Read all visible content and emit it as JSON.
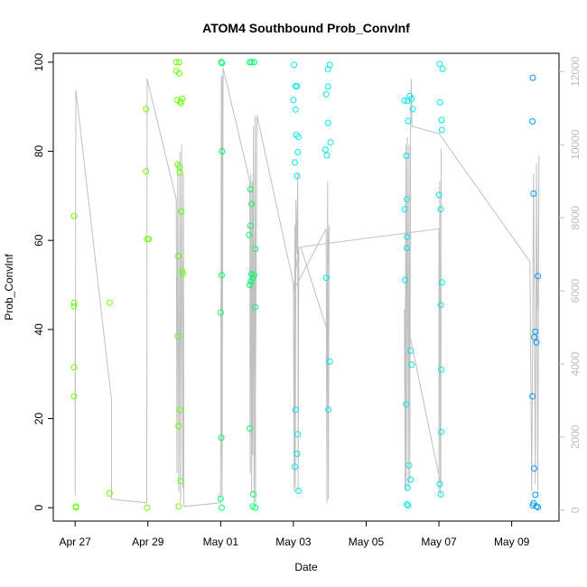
{
  "chart_data": {
    "type": "scatter",
    "title": "ATOM4 Southbound Prob_ConvInf",
    "xlabel": "Date",
    "ylabel": "Prob_ConvInf",
    "x_ticks": [
      "Apr 27",
      "Apr 29",
      "May 01",
      "May 03",
      "May 05",
      "May 07",
      "May 09"
    ],
    "x_tick_days": [
      0,
      2,
      4,
      6,
      8,
      10,
      12
    ],
    "xlim_days": [
      -0.6,
      13.3
    ],
    "ylim": [
      -3,
      102
    ],
    "y_ticks": [
      0,
      20,
      40,
      60,
      80,
      100
    ],
    "y2lim": [
      -300,
      12500
    ],
    "y2_ticks": [
      0,
      2000,
      4000,
      6000,
      8000,
      10000,
      12000
    ],
    "grid": false,
    "point_colors": {
      "early": "#66ff00",
      "mid": "#00ff66",
      "late": "#00e6e6",
      "end": "#0099ff"
    },
    "line_color": "#c0c0c0",
    "points": [
      [
        -0.03,
        65.5
      ],
      [
        -0.03,
        46
      ],
      [
        -0.03,
        45.2
      ],
      [
        -0.03,
        31.5
      ],
      [
        -0.03,
        25
      ],
      [
        0.02,
        0.3
      ],
      [
        0.02,
        0
      ],
      [
        0.95,
        46
      ],
      [
        0.95,
        3.2
      ],
      [
        1.95,
        89.5
      ],
      [
        1.95,
        75.5
      ],
      [
        1.98,
        60.3
      ],
      [
        2.02,
        60.3
      ],
      [
        1.98,
        0
      ],
      [
        2.78,
        100
      ],
      [
        2.86,
        100
      ],
      [
        2.78,
        98
      ],
      [
        2.86,
        97.5
      ],
      [
        2.8,
        91.5
      ],
      [
        2.9,
        91.2
      ],
      [
        2.95,
        91.8
      ],
      [
        2.9,
        90.8
      ],
      [
        2.82,
        77
      ],
      [
        2.87,
        76.5
      ],
      [
        2.88,
        75.2
      ],
      [
        2.92,
        66.5
      ],
      [
        2.84,
        56.5
      ],
      [
        2.94,
        53
      ],
      [
        2.96,
        52.5
      ],
      [
        2.82,
        38.5
      ],
      [
        2.88,
        22
      ],
      [
        2.84,
        18.3
      ],
      [
        2.9,
        6
      ],
      [
        2.85,
        0.3
      ],
      [
        4.02,
        100
      ],
      [
        4.04,
        99.8
      ],
      [
        4.04,
        80
      ],
      [
        4.03,
        52.2
      ],
      [
        4.0,
        43.8
      ],
      [
        4.02,
        15.7
      ],
      [
        4.0,
        2
      ],
      [
        4.03,
        0
      ],
      [
        4.8,
        100
      ],
      [
        4.85,
        100
      ],
      [
        4.92,
        100
      ],
      [
        4.82,
        71.5
      ],
      [
        4.85,
        68.2
      ],
      [
        4.82,
        63.3
      ],
      [
        4.78,
        61.2
      ],
      [
        4.95,
        58.1
      ],
      [
        4.85,
        52.5
      ],
      [
        4.92,
        52.2
      ],
      [
        4.88,
        51.5
      ],
      [
        4.83,
        50.8
      ],
      [
        4.8,
        50
      ],
      [
        4.95,
        45
      ],
      [
        4.8,
        17.8
      ],
      [
        4.9,
        3
      ],
      [
        4.88,
        0.3
      ],
      [
        4.95,
        0
      ],
      [
        6.02,
        99.4
      ],
      [
        6.06,
        94.6
      ],
      [
        6.1,
        94.6
      ],
      [
        6.0,
        91.5
      ],
      [
        6.06,
        89.4
      ],
      [
        6.08,
        83.7
      ],
      [
        6.14,
        83.2
      ],
      [
        6.12,
        79.8
      ],
      [
        6.04,
        77.5
      ],
      [
        6.1,
        74.5
      ],
      [
        6.06,
        22
      ],
      [
        6.12,
        16.5
      ],
      [
        6.1,
        12.1
      ],
      [
        6.04,
        9.2
      ],
      [
        6.14,
        3.8
      ],
      [
        7.0,
        99.4
      ],
      [
        6.95,
        98.4
      ],
      [
        6.95,
        94.5
      ],
      [
        6.9,
        92.8
      ],
      [
        6.95,
        86.4
      ],
      [
        7.02,
        82
      ],
      [
        6.88,
        80.4
      ],
      [
        6.92,
        79.1
      ],
      [
        6.9,
        51.6
      ],
      [
        7.0,
        32.8
      ],
      [
        6.96,
        22
      ],
      [
        10.02,
        99.6
      ],
      [
        10.1,
        98.5
      ],
      [
        10.03,
        91
      ],
      [
        10.07,
        87
      ],
      [
        10.08,
        84.8
      ],
      [
        10.05,
        67
      ],
      [
        10.0,
        70.2
      ],
      [
        10.08,
        50.6
      ],
      [
        10.05,
        45.5
      ],
      [
        10.06,
        31
      ],
      [
        10.06,
        17
      ],
      [
        10.02,
        5.3
      ],
      [
        10.05,
        3
      ],
      [
        9.2,
        92.4
      ],
      [
        9.25,
        91.8
      ],
      [
        9.05,
        91.4
      ],
      [
        9.13,
        91.3
      ],
      [
        9.28,
        89.5
      ],
      [
        9.15,
        86.8
      ],
      [
        9.1,
        79
      ],
      [
        9.12,
        69.2
      ],
      [
        9.06,
        67
      ],
      [
        9.12,
        60.8
      ],
      [
        9.12,
        58.3
      ],
      [
        9.07,
        51.1
      ],
      [
        9.22,
        35.2
      ],
      [
        9.25,
        32.1
      ],
      [
        9.1,
        23.2
      ],
      [
        9.18,
        9.5
      ],
      [
        9.22,
        6.3
      ],
      [
        9.14,
        4.5
      ],
      [
        9.12,
        0.8
      ],
      [
        9.15,
        0.5
      ],
      [
        12.58,
        96.5
      ],
      [
        12.57,
        86.7
      ],
      [
        12.6,
        70.5
      ],
      [
        12.72,
        52
      ],
      [
        12.65,
        39.5
      ],
      [
        12.62,
        38.3
      ],
      [
        12.68,
        37.1
      ],
      [
        12.57,
        25
      ],
      [
        12.62,
        8.8
      ],
      [
        12.65,
        2.9
      ],
      [
        12.6,
        1
      ],
      [
        12.58,
        0.5
      ],
      [
        12.68,
        0.3
      ],
      [
        12.72,
        0.1
      ]
    ],
    "line_path": [
      [
        0.0,
        5200
      ],
      [
        0.0,
        400
      ],
      [
        0.02,
        11500
      ],
      [
        1.0,
        3000
      ],
      [
        1.0,
        300
      ],
      [
        1.97,
        200
      ],
      [
        1.98,
        11800
      ],
      [
        2.78,
        8500
      ],
      [
        2.8,
        1000
      ],
      [
        2.82,
        9500
      ],
      [
        2.85,
        500
      ],
      [
        2.88,
        9800
      ],
      [
        2.9,
        200
      ],
      [
        2.93,
        10000
      ],
      [
        2.96,
        600
      ],
      [
        2.98,
        9200
      ],
      [
        2.99,
        200
      ],
      [
        3.0,
        100
      ],
      [
        4.0,
        200
      ],
      [
        4.02,
        11800
      ],
      [
        4.04,
        11900
      ],
      [
        4.03,
        2000
      ],
      [
        4.04,
        400
      ],
      [
        4.07,
        12100
      ],
      [
        4.8,
        9000
      ],
      [
        4.81,
        1000
      ],
      [
        4.83,
        9200
      ],
      [
        4.85,
        500
      ],
      [
        4.87,
        9000
      ],
      [
        4.88,
        1500
      ],
      [
        4.9,
        10500
      ],
      [
        4.92,
        200
      ],
      [
        4.95,
        10800
      ],
      [
        4.96,
        100
      ],
      [
        4.95,
        1800
      ],
      [
        5.0,
        10800
      ],
      [
        6.0,
        6200
      ],
      [
        6.02,
        500
      ],
      [
        6.04,
        7800
      ],
      [
        6.05,
        600
      ],
      [
        6.07,
        8500
      ],
      [
        6.1,
        7000
      ],
      [
        6.12,
        9200
      ],
      [
        6.13,
        500
      ],
      [
        6.15,
        7200
      ],
      [
        6.0,
        6000
      ],
      [
        6.9,
        7700
      ],
      [
        6.92,
        200
      ],
      [
        6.94,
        9000
      ],
      [
        6.96,
        300
      ],
      [
        6.98,
        7800
      ],
      [
        6.9,
        5000
      ],
      [
        6.2,
        7200
      ],
      [
        10.0,
        7700
      ],
      [
        10.0,
        500
      ],
      [
        10.02,
        9000
      ],
      [
        10.04,
        400
      ],
      [
        10.06,
        9900
      ],
      [
        10.05,
        700
      ],
      [
        9.05,
        5500
      ],
      [
        9.07,
        600
      ],
      [
        9.09,
        10000
      ],
      [
        9.1,
        500
      ],
      [
        9.13,
        10200
      ],
      [
        9.16,
        600
      ],
      [
        9.18,
        10000
      ],
      [
        9.2,
        800
      ],
      [
        9.22,
        10300
      ],
      [
        9.24,
        11800
      ],
      [
        9.26,
        10500
      ],
      [
        10.0,
        10300
      ],
      [
        12.5,
        6800
      ],
      [
        12.55,
        500
      ],
      [
        12.6,
        9200
      ],
      [
        12.65,
        700
      ],
      [
        12.68,
        9500
      ],
      [
        12.72,
        400
      ],
      [
        12.75,
        9700
      ],
      [
        12.72,
        5500
      ]
    ]
  }
}
